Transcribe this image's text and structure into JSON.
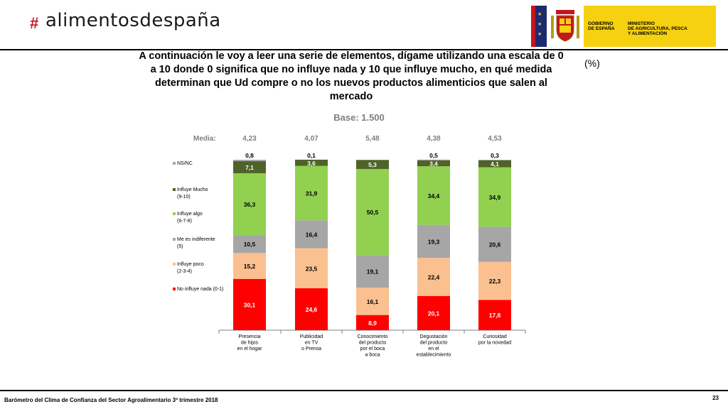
{
  "header": {
    "logo_text": "alimentosdespaña",
    "gov_label": "GOBIERNO\nDE ESPAÑA",
    "ministry_label": "MINISTERIO\nDE AGRICULTURA, PESCA\nY ALIMENTACIÓN"
  },
  "footer": {
    "source": "Barómetro del Clima de Confianza del Sector Agroalimentario 3º trimestre 2018",
    "page": "23"
  },
  "chart_data": {
    "type": "bar",
    "stacked": true,
    "title": "A continuación le voy a leer una serie de elementos, dígame utilizando una escala de 0 a 10 donde 0 significa que no influye nada y 10 que influye mucho, en qué medida determinan que Ud compre o no los nuevos productos alimenticios que salen al mercado",
    "unit_label": "(%)",
    "subtitle": "Base: 1.500",
    "media_label": "Media:",
    "categories": [
      "Presencia\nde hijos\nen el hogar",
      "Publicidad\nen TV\no Prensa",
      "Conocimiento\ndel producto\npor el boca\na boca",
      "Degustación\ndel producto\nen el\nestablecimiento",
      "Curiosidad\npor la novedad"
    ],
    "media": [
      "4,23",
      "4,07",
      "5,48",
      "4,38",
      "4,53"
    ],
    "ylim": [
      0,
      100
    ],
    "legend_position": "left",
    "series": [
      {
        "name": "No influye nada (0-1)",
        "color": "#ff0000",
        "label_color": "#ffffff",
        "values": [
          30.1,
          24.6,
          8.9,
          20.1,
          17.8
        ],
        "labels": [
          "30,1",
          "24,6",
          "8,9",
          "20,1",
          "17,8"
        ]
      },
      {
        "name": "Influye poco\n(2-3-4)",
        "color": "#fac090",
        "label_color": "#000000",
        "values": [
          15.2,
          23.5,
          16.1,
          22.4,
          22.3
        ],
        "labels": [
          "15,2",
          "23,5",
          "16,1",
          "22,4",
          "22,3"
        ]
      },
      {
        "name": "Me es indiferente\n(5)",
        "color": "#a6a6a6",
        "label_color": "#000000",
        "values": [
          10.5,
          16.4,
          19.1,
          19.3,
          20.6
        ],
        "labels": [
          "10,5",
          "16,4",
          "19,1",
          "19,3",
          "20,6"
        ]
      },
      {
        "name": "Influye algo\n(6-7-8)",
        "color": "#92d050",
        "label_color": "#000000",
        "values": [
          36.3,
          31.9,
          50.5,
          34.4,
          34.9
        ],
        "labels": [
          "36,3",
          "31,9",
          "50,5",
          "34,4",
          "34,9"
        ]
      },
      {
        "name": "Influye Mucho\n(9-10)",
        "color": "#4f6228",
        "label_color": "#ffffff",
        "values": [
          7.1,
          3.6,
          5.3,
          3.4,
          4.1
        ],
        "labels": [
          "7,1",
          "3,6",
          "5,3",
          "3,4",
          "4,1"
        ]
      },
      {
        "name": "NS/NC",
        "color": "#a6a6a6",
        "label_color": "#000000",
        "values": [
          0.8,
          0.1,
          0.0,
          0.5,
          0.3
        ],
        "labels": [
          "0,8",
          "0,1",
          "",
          "0,5",
          "0,3"
        ]
      }
    ]
  }
}
